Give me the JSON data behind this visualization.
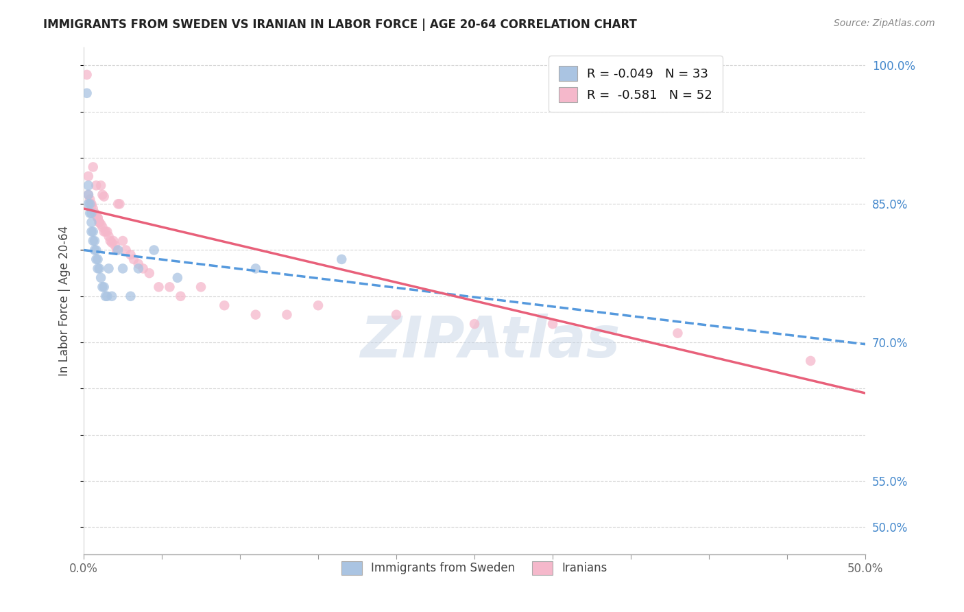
{
  "title": "IMMIGRANTS FROM SWEDEN VS IRANIAN IN LABOR FORCE | AGE 20-64 CORRELATION CHART",
  "source": "Source: ZipAtlas.com",
  "ylabel": "In Labor Force | Age 20-64",
  "xlim": [
    0.0,
    0.5
  ],
  "ylim": [
    0.47,
    1.02
  ],
  "x_ticks": [
    0.0,
    0.05,
    0.1,
    0.15,
    0.2,
    0.25,
    0.3,
    0.35,
    0.4,
    0.45,
    0.5
  ],
  "x_tick_labels": [
    "0.0%",
    "",
    "",
    "",
    "",
    "",
    "",
    "",
    "",
    "",
    "50.0%"
  ],
  "y_ticks": [
    0.5,
    0.55,
    0.6,
    0.65,
    0.7,
    0.75,
    0.8,
    0.85,
    0.9,
    0.95,
    1.0
  ],
  "y_tick_labels_right": [
    "50.0%",
    "55.0%",
    "",
    "",
    "70.0%",
    "",
    "",
    "85.0%",
    "",
    "",
    "100.0%"
  ],
  "sweden_color": "#aac4e2",
  "iran_color": "#f5b8cb",
  "sweden_line_color": "#5599dd",
  "iran_line_color": "#e8607a",
  "legend_r_sweden": "R = -0.049",
  "legend_n_sweden": "N = 33",
  "legend_r_iran": "R =  -0.581",
  "legend_n_iran": "N = 52",
  "watermark": "ZIPAtlas",
  "sweden_x": [
    0.002,
    0.003,
    0.003,
    0.003,
    0.004,
    0.004,
    0.005,
    0.005,
    0.005,
    0.006,
    0.006,
    0.007,
    0.007,
    0.008,
    0.008,
    0.009,
    0.009,
    0.01,
    0.011,
    0.012,
    0.013,
    0.014,
    0.015,
    0.016,
    0.018,
    0.022,
    0.025,
    0.03,
    0.035,
    0.045,
    0.06,
    0.11,
    0.165
  ],
  "sweden_y": [
    0.97,
    0.87,
    0.86,
    0.85,
    0.85,
    0.84,
    0.84,
    0.83,
    0.82,
    0.82,
    0.81,
    0.81,
    0.8,
    0.8,
    0.79,
    0.79,
    0.78,
    0.78,
    0.77,
    0.76,
    0.76,
    0.75,
    0.75,
    0.78,
    0.75,
    0.8,
    0.78,
    0.75,
    0.78,
    0.8,
    0.77,
    0.78,
    0.79
  ],
  "iran_x": [
    0.002,
    0.003,
    0.003,
    0.004,
    0.005,
    0.005,
    0.006,
    0.006,
    0.007,
    0.007,
    0.008,
    0.008,
    0.009,
    0.009,
    0.01,
    0.01,
    0.011,
    0.011,
    0.012,
    0.012,
    0.013,
    0.013,
    0.014,
    0.015,
    0.016,
    0.017,
    0.018,
    0.019,
    0.02,
    0.021,
    0.022,
    0.023,
    0.025,
    0.027,
    0.03,
    0.032,
    0.035,
    0.038,
    0.042,
    0.048,
    0.055,
    0.062,
    0.075,
    0.09,
    0.11,
    0.13,
    0.15,
    0.2,
    0.25,
    0.3,
    0.38,
    0.465
  ],
  "iran_y": [
    0.99,
    0.88,
    0.86,
    0.855,
    0.85,
    0.848,
    0.845,
    0.89,
    0.84,
    0.84,
    0.838,
    0.87,
    0.835,
    0.835,
    0.83,
    0.83,
    0.828,
    0.87,
    0.825,
    0.86,
    0.858,
    0.82,
    0.82,
    0.82,
    0.815,
    0.81,
    0.808,
    0.81,
    0.805,
    0.8,
    0.85,
    0.85,
    0.81,
    0.8,
    0.795,
    0.79,
    0.785,
    0.78,
    0.775,
    0.76,
    0.76,
    0.75,
    0.76,
    0.74,
    0.73,
    0.73,
    0.74,
    0.73,
    0.72,
    0.72,
    0.71,
    0.68
  ],
  "sweden_line_x": [
    0.0,
    0.5
  ],
  "sweden_line_y": [
    0.8,
    0.698
  ],
  "iran_line_x": [
    0.0,
    0.5
  ],
  "iran_line_y": [
    0.845,
    0.645
  ]
}
